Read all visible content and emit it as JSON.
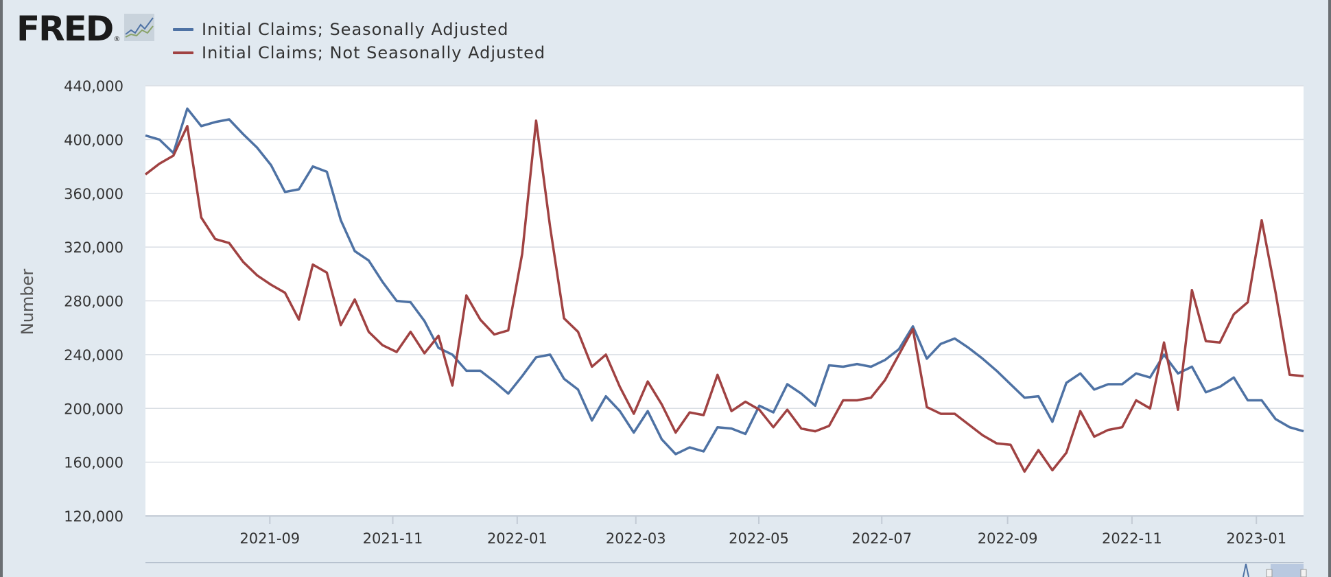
{
  "logo": {
    "text": "FRED",
    "reg": "®"
  },
  "colors": {
    "sa": "#4e72a4",
    "nsa": "#a04242",
    "plot_bg": "#ffffff",
    "grid": "#d9dee4",
    "page_bg": "#e1e9f0"
  },
  "chart_data": {
    "type": "line",
    "title": "",
    "xlabel": "",
    "ylabel": "Number",
    "ylim": [
      120000,
      440000
    ],
    "yticks": [
      120000,
      160000,
      200000,
      240000,
      280000,
      320000,
      360000,
      400000,
      440000
    ],
    "ytick_labels": [
      "120,000",
      "160,000",
      "200,000",
      "240,000",
      "280,000",
      "320,000",
      "360,000",
      "400,000",
      "440,000"
    ],
    "xlim_week": [
      0,
      81
    ],
    "xticks": [
      {
        "label": "2021-09",
        "week": 8.7
      },
      {
        "label": "2021-11",
        "week": 17.3
      },
      {
        "label": "2022-01",
        "week": 26.0
      },
      {
        "label": "2022-03",
        "week": 34.3
      },
      {
        "label": "2022-05",
        "week": 42.9
      },
      {
        "label": "2022-07",
        "week": 51.5
      },
      {
        "label": "2022-09",
        "week": 60.3
      },
      {
        "label": "2022-11",
        "week": 69.0
      },
      {
        "label": "2023-01",
        "week": 77.7
      }
    ],
    "legend_position": "top-left",
    "series": [
      {
        "name": "Initial Claims; Seasonally Adjusted",
        "color": "#4e72a4",
        "values": [
          403000,
          400000,
          390000,
          423000,
          410000,
          413000,
          415000,
          404000,
          394000,
          381000,
          361000,
          363000,
          380000,
          376000,
          340000,
          317000,
          310000,
          294000,
          280000,
          279000,
          265000,
          245000,
          240000,
          228000,
          228000,
          220000,
          211000,
          224000,
          238000,
          240000,
          222000,
          214000,
          191000,
          209000,
          198000,
          182000,
          198000,
          177000,
          166000,
          171000,
          168000,
          186000,
          185000,
          181000,
          202000,
          197000,
          218000,
          211000,
          202000,
          232000,
          231000,
          233000,
          231000,
          236000,
          244000,
          261000,
          237000,
          248000,
          252000,
          245000,
          237000,
          228000,
          218000,
          208000,
          209000,
          190000,
          219000,
          226000,
          214000,
          218000,
          218000,
          226000,
          223000,
          240000,
          226000,
          231000,
          212000,
          216000,
          223000,
          206000,
          206000,
          192000,
          186000,
          183000
        ]
      },
      {
        "name": "Initial Claims; Not Seasonally Adjusted",
        "color": "#a04242",
        "values": [
          374000,
          382000,
          388000,
          410000,
          342000,
          326000,
          323000,
          309000,
          299000,
          292000,
          286000,
          266000,
          307000,
          301000,
          262000,
          281000,
          257000,
          247000,
          242000,
          257000,
          241000,
          254000,
          217000,
          284000,
          266000,
          255000,
          258000,
          315000,
          414000,
          335000,
          267000,
          257000,
          231000,
          240000,
          216000,
          196000,
          220000,
          203000,
          182000,
          197000,
          195000,
          225000,
          198000,
          205000,
          199000,
          186000,
          199000,
          185000,
          183000,
          187000,
          206000,
          206000,
          208000,
          221000,
          240000,
          259000,
          201000,
          196000,
          196000,
          188000,
          180000,
          174000,
          173000,
          153000,
          169000,
          154000,
          167000,
          198000,
          179000,
          184000,
          186000,
          206000,
          200000,
          249000,
          199000,
          288000,
          250000,
          249000,
          270000,
          279000,
          340000,
          286000,
          225000,
          224000
        ]
      }
    ]
  }
}
